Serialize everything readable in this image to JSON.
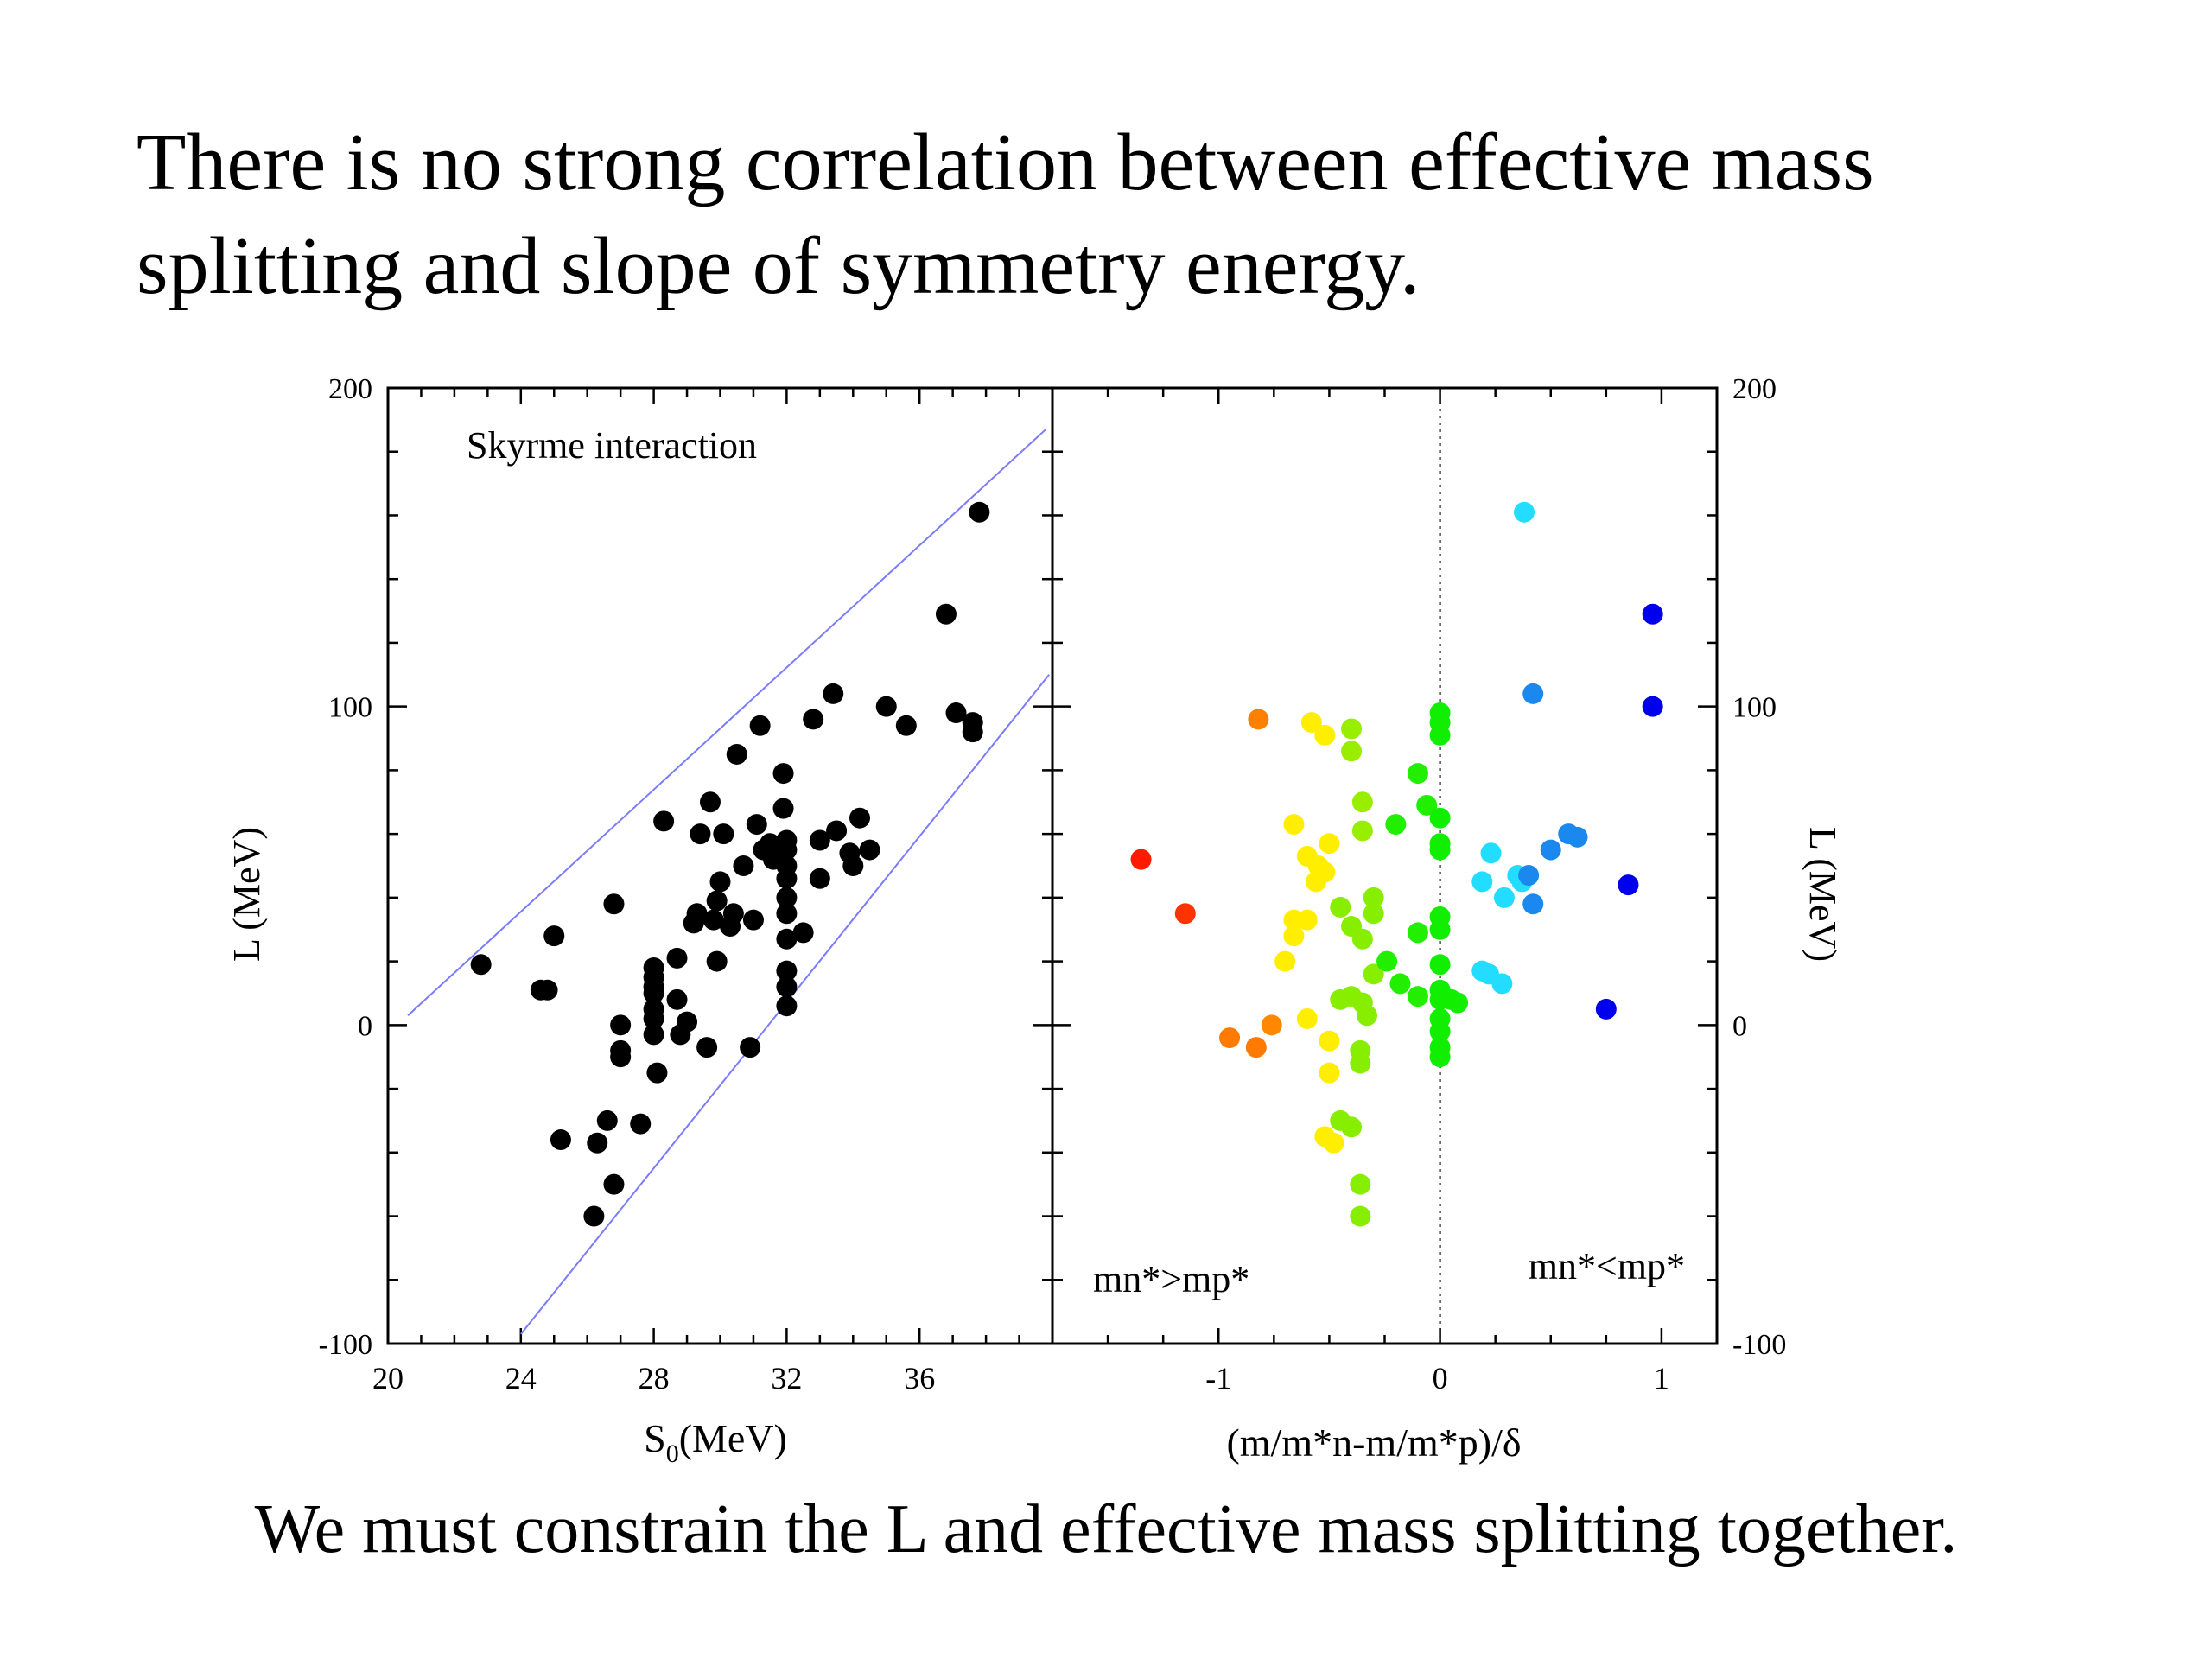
{
  "slide": {
    "title_lines": [
      "There is no strong correlation between effective mass",
      "splitting and slope of symmetry energy."
    ],
    "footer": "We must constrain the L and effective mass splitting together."
  },
  "colors": {
    "left_points": "#000000",
    "bound_lines": "#7b7bff",
    "zero_line": "#000000"
  },
  "chart_data": [
    {
      "type": "scatter",
      "annotation": "Skyrme interaction",
      "xlabel": "S",
      "xlabel_sub": "0",
      "xlabel_unit": "(MeV)",
      "ylabel": "L (MeV)",
      "xlim": [
        20,
        40
      ],
      "ylim": [
        -100,
        200
      ],
      "xticks": [
        20,
        24,
        28,
        32,
        36
      ],
      "yticks": [
        -100,
        0,
        100,
        200
      ],
      "bounds": [
        {
          "x1": 20.6,
          "y1": 3,
          "x2": 39.8,
          "y2": 187
        },
        {
          "x1": 24.0,
          "y1": -97,
          "x2": 39.9,
          "y2": 110
        }
      ],
      "points": [
        [
          22.8,
          19
        ],
        [
          24.8,
          11
        ],
        [
          25.0,
          28
        ],
        [
          24.6,
          11
        ],
        [
          25.2,
          -36
        ],
        [
          26.8,
          38
        ],
        [
          26.3,
          -37
        ],
        [
          26.6,
          -30
        ],
        [
          26.2,
          -60
        ],
        [
          26.8,
          -50
        ],
        [
          27.0,
          -8
        ],
        [
          27.0,
          -10
        ],
        [
          27.0,
          0
        ],
        [
          27.6,
          -31
        ],
        [
          28.0,
          5
        ],
        [
          28.0,
          10
        ],
        [
          28.0,
          12
        ],
        [
          28.0,
          15
        ],
        [
          28.0,
          18
        ],
        [
          28.0,
          2
        ],
        [
          28.0,
          -3
        ],
        [
          28.1,
          -15
        ],
        [
          28.3,
          64
        ],
        [
          28.7,
          21
        ],
        [
          28.7,
          8
        ],
        [
          28.8,
          -3
        ],
        [
          29.0,
          1
        ],
        [
          29.2,
          32
        ],
        [
          29.3,
          35
        ],
        [
          29.4,
          60
        ],
        [
          29.6,
          -7
        ],
        [
          29.7,
          70
        ],
        [
          29.8,
          33
        ],
        [
          29.9,
          20
        ],
        [
          29.9,
          39
        ],
        [
          30.0,
          45
        ],
        [
          30.1,
          60
        ],
        [
          30.3,
          31
        ],
        [
          30.4,
          35
        ],
        [
          30.5,
          85
        ],
        [
          30.7,
          50
        ],
        [
          30.9,
          -7
        ],
        [
          31.0,
          33
        ],
        [
          31.1,
          63
        ],
        [
          31.2,
          94
        ],
        [
          31.3,
          55
        ],
        [
          31.5,
          57
        ],
        [
          31.6,
          52
        ],
        [
          31.9,
          79
        ],
        [
          31.9,
          68
        ],
        [
          32.0,
          58
        ],
        [
          32.0,
          55
        ],
        [
          32.0,
          50
        ],
        [
          32.0,
          46
        ],
        [
          32.0,
          40
        ],
        [
          32.0,
          35
        ],
        [
          32.0,
          27
        ],
        [
          32.0,
          17
        ],
        [
          32.0,
          12
        ],
        [
          32.0,
          6
        ],
        [
          32.5,
          29
        ],
        [
          32.8,
          96
        ],
        [
          33.0,
          46
        ],
        [
          33.0,
          58
        ],
        [
          33.4,
          104
        ],
        [
          33.5,
          61
        ],
        [
          33.9,
          54
        ],
        [
          34.0,
          50
        ],
        [
          34.2,
          65
        ],
        [
          34.5,
          55
        ],
        [
          35.0,
          100
        ],
        [
          35.6,
          94
        ],
        [
          36.8,
          129
        ],
        [
          37.1,
          98
        ],
        [
          37.6,
          95
        ],
        [
          37.6,
          92
        ],
        [
          37.8,
          161
        ]
      ]
    },
    {
      "type": "scatter",
      "xlabel": "(m/m*n-m/m*p)/δ",
      "ylabel": "L (MeV)",
      "xlim": [
        -1.75,
        1.25
      ],
      "ylim": [
        -100,
        200
      ],
      "xticks": [
        -1,
        0,
        1
      ],
      "yticks": [
        -100,
        0,
        100,
        200
      ],
      "annotations": [
        "mn*>mp*",
        "mn*<mp*"
      ],
      "points": [
        {
          "x": -1.35,
          "y": 52,
          "color": "#ff1a00"
        },
        {
          "x": -1.15,
          "y": 35,
          "color": "#ff3300"
        },
        {
          "x": -0.82,
          "y": 96,
          "color": "#ff7f00"
        },
        {
          "x": -0.95,
          "y": -4,
          "color": "#ff7a00"
        },
        {
          "x": -0.83,
          "y": -7,
          "color": "#ff7a00"
        },
        {
          "x": -0.76,
          "y": 0,
          "color": "#ff8800"
        },
        {
          "x": -0.58,
          "y": 95,
          "color": "#ffee00"
        },
        {
          "x": -0.52,
          "y": 91,
          "color": "#ffee00"
        },
        {
          "x": -0.66,
          "y": 63,
          "color": "#ffee00"
        },
        {
          "x": -0.6,
          "y": 53,
          "color": "#ffee00"
        },
        {
          "x": -0.55,
          "y": 50,
          "color": "#ffee00"
        },
        {
          "x": -0.52,
          "y": 48,
          "color": "#ffee00"
        },
        {
          "x": -0.56,
          "y": 45,
          "color": "#ffee00"
        },
        {
          "x": -0.5,
          "y": 57,
          "color": "#ffee00"
        },
        {
          "x": -0.66,
          "y": 33,
          "color": "#ffee00"
        },
        {
          "x": -0.6,
          "y": 33,
          "color": "#ffee00"
        },
        {
          "x": -0.66,
          "y": 28,
          "color": "#ffee00"
        },
        {
          "x": -0.7,
          "y": 20,
          "color": "#ffee00"
        },
        {
          "x": -0.6,
          "y": 2,
          "color": "#ffee00"
        },
        {
          "x": -0.5,
          "y": -5,
          "color": "#ffee00"
        },
        {
          "x": -0.5,
          "y": -15,
          "color": "#ffee00"
        },
        {
          "x": -0.52,
          "y": -35,
          "color": "#ffee00"
        },
        {
          "x": -0.48,
          "y": -37,
          "color": "#ffee00"
        },
        {
          "x": -0.4,
          "y": 93,
          "color": "#99ee00"
        },
        {
          "x": -0.4,
          "y": 86,
          "color": "#99ee00"
        },
        {
          "x": -0.35,
          "y": 70,
          "color": "#99ee00"
        },
        {
          "x": -0.35,
          "y": 61,
          "color": "#99ee00"
        },
        {
          "x": -0.45,
          "y": 37,
          "color": "#88ee00"
        },
        {
          "x": -0.4,
          "y": 31,
          "color": "#88ee00"
        },
        {
          "x": -0.3,
          "y": 35,
          "color": "#88ee00"
        },
        {
          "x": -0.3,
          "y": 40,
          "color": "#88ee00"
        },
        {
          "x": -0.35,
          "y": 27,
          "color": "#88ee00"
        },
        {
          "x": -0.3,
          "y": 16,
          "color": "#88ee00"
        },
        {
          "x": -0.45,
          "y": 8,
          "color": "#88ee00"
        },
        {
          "x": -0.4,
          "y": 9,
          "color": "#88ee00"
        },
        {
          "x": -0.35,
          "y": 7,
          "color": "#88ee00"
        },
        {
          "x": -0.33,
          "y": 3,
          "color": "#88ee00"
        },
        {
          "x": -0.36,
          "y": -8,
          "color": "#88ee00"
        },
        {
          "x": -0.36,
          "y": -12,
          "color": "#88ee00"
        },
        {
          "x": -0.45,
          "y": -30,
          "color": "#88ee00"
        },
        {
          "x": -0.4,
          "y": -32,
          "color": "#88ee00"
        },
        {
          "x": -0.36,
          "y": -50,
          "color": "#88ee00"
        },
        {
          "x": -0.36,
          "y": -60,
          "color": "#88ee00"
        },
        {
          "x": -0.1,
          "y": 79,
          "color": "#22ee00"
        },
        {
          "x": -0.06,
          "y": 69,
          "color": "#22ee00"
        },
        {
          "x": -0.2,
          "y": 63,
          "color": "#22ee00"
        },
        {
          "x": -0.1,
          "y": 29,
          "color": "#22ee00"
        },
        {
          "x": -0.18,
          "y": 13,
          "color": "#22ee00"
        },
        {
          "x": -0.1,
          "y": 9,
          "color": "#22ee00"
        },
        {
          "x": -0.24,
          "y": 20,
          "color": "#22ee00"
        },
        {
          "x": 0.0,
          "y": 98,
          "color": "#11ee00"
        },
        {
          "x": 0.0,
          "y": 95,
          "color": "#11ee00"
        },
        {
          "x": 0.0,
          "y": 91,
          "color": "#11ee00"
        },
        {
          "x": 0.0,
          "y": 65,
          "color": "#11ee00"
        },
        {
          "x": 0.0,
          "y": 57,
          "color": "#11ee00"
        },
        {
          "x": 0.0,
          "y": 55,
          "color": "#11ee00"
        },
        {
          "x": 0.0,
          "y": 34,
          "color": "#11ee00"
        },
        {
          "x": 0.0,
          "y": 30,
          "color": "#11ee00"
        },
        {
          "x": 0.0,
          "y": 19,
          "color": "#11ee00"
        },
        {
          "x": 0.0,
          "y": 11,
          "color": "#11ee00"
        },
        {
          "x": 0.0,
          "y": 8,
          "color": "#11ee00"
        },
        {
          "x": 0.0,
          "y": 2,
          "color": "#11ee00"
        },
        {
          "x": 0.0,
          "y": -2,
          "color": "#11ee00"
        },
        {
          "x": 0.0,
          "y": -7,
          "color": "#11ee00"
        },
        {
          "x": 0.0,
          "y": -10,
          "color": "#11ee00"
        },
        {
          "x": 0.05,
          "y": 8,
          "color": "#11ee00"
        },
        {
          "x": 0.08,
          "y": 7,
          "color": "#11ee00"
        },
        {
          "x": 0.38,
          "y": 161,
          "color": "#22ddff"
        },
        {
          "x": 0.23,
          "y": 54,
          "color": "#22ddff"
        },
        {
          "x": 0.19,
          "y": 45,
          "color": "#22ddff"
        },
        {
          "x": 0.29,
          "y": 40,
          "color": "#22ddff"
        },
        {
          "x": 0.35,
          "y": 47,
          "color": "#22ddff"
        },
        {
          "x": 0.37,
          "y": 45,
          "color": "#22ddff"
        },
        {
          "x": 0.19,
          "y": 17,
          "color": "#22ddff"
        },
        {
          "x": 0.22,
          "y": 16,
          "color": "#22ddff"
        },
        {
          "x": 0.28,
          "y": 13,
          "color": "#22ddff"
        },
        {
          "x": 0.42,
          "y": 104,
          "color": "#1a88ee"
        },
        {
          "x": 0.5,
          "y": 55,
          "color": "#1a88ee"
        },
        {
          "x": 0.58,
          "y": 60,
          "color": "#1a88ee"
        },
        {
          "x": 0.62,
          "y": 59,
          "color": "#1a88ee"
        },
        {
          "x": 0.4,
          "y": 47,
          "color": "#1a88ee"
        },
        {
          "x": 0.42,
          "y": 38,
          "color": "#1a88ee"
        },
        {
          "x": 0.96,
          "y": 129,
          "color": "#0000ee"
        },
        {
          "x": 0.96,
          "y": 100,
          "color": "#0000ee"
        },
        {
          "x": 0.85,
          "y": 44,
          "color": "#0000ee"
        },
        {
          "x": 0.75,
          "y": 5,
          "color": "#0000ee"
        }
      ]
    }
  ]
}
